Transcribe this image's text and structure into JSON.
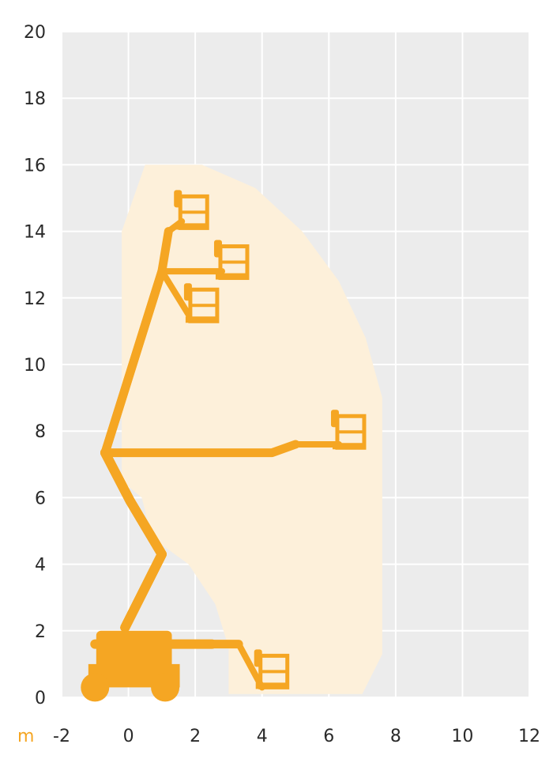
{
  "chart_data": {
    "type": "working-range-diagram",
    "unit_label": "m",
    "x_ticks": [
      "-2",
      "0",
      "2",
      "4",
      "6",
      "8",
      "10",
      "12"
    ],
    "y_ticks": [
      "0",
      "2",
      "4",
      "6",
      "8",
      "10",
      "12",
      "14",
      "16",
      "18",
      "20"
    ],
    "xlim": [
      -2,
      12
    ],
    "ylim": [
      0,
      20
    ],
    "grid": true,
    "colors": {
      "plot_background": "#ececec",
      "grid": "#ffffff",
      "envelope": "#fdf0da",
      "machine": "#f5a623",
      "unit_label": "#f5a623",
      "tick_text": "#2a2a2a"
    },
    "working_envelope": [
      [
        0.5,
        16.0
      ],
      [
        2.2,
        16.0
      ],
      [
        3.8,
        15.3
      ],
      [
        5.2,
        14.0
      ],
      [
        6.3,
        12.5
      ],
      [
        7.1,
        10.8
      ],
      [
        7.6,
        9.0
      ],
      [
        7.6,
        1.3
      ],
      [
        7.0,
        0.1
      ],
      [
        3.0,
        0.1
      ],
      [
        3.0,
        1.5
      ],
      [
        2.6,
        2.8
      ],
      [
        1.8,
        4.0
      ],
      [
        0.7,
        4.8
      ],
      [
        0.4,
        6.0
      ],
      [
        -0.2,
        6.5
      ],
      [
        -0.2,
        14.0
      ]
    ],
    "machine_positions": [
      {
        "mast": [
          [
            -0.7,
            7.35
          ],
          [
            0.05,
            5.9
          ],
          [
            1.0,
            4.3
          ],
          [
            -0.1,
            2.1
          ]
        ],
        "boom": [
          [
            1.0,
            12.8
          ],
          [
            1.2,
            14.0
          ]
        ],
        "jib": [
          [
            1.2,
            14.0
          ],
          [
            1.6,
            14.3
          ]
        ],
        "basket": [
          1.6,
          14.1
        ]
      },
      {
        "mast": [
          [
            -0.7,
            7.35
          ],
          [
            0.05,
            5.9
          ],
          [
            1.0,
            4.3
          ],
          [
            -0.1,
            2.1
          ]
        ],
        "boom": [
          [
            -0.7,
            7.35
          ],
          [
            1.0,
            12.8
          ]
        ],
        "jib": [
          [
            1.0,
            12.8
          ],
          [
            2.8,
            12.8
          ]
        ],
        "basket": [
          2.8,
          12.6
        ]
      },
      {
        "mast": [
          [
            -0.7,
            7.35
          ],
          [
            0.05,
            5.9
          ],
          [
            1.0,
            4.3
          ],
          [
            -0.1,
            2.1
          ]
        ],
        "boom": [
          [
            -0.7,
            7.35
          ],
          [
            1.0,
            12.8
          ]
        ],
        "jib": [
          [
            1.0,
            12.8
          ],
          [
            1.8,
            11.5
          ]
        ],
        "basket": [
          1.9,
          11.3
        ]
      },
      {
        "mast": [
          [
            -0.7,
            7.35
          ],
          [
            0.05,
            5.9
          ],
          [
            1.0,
            4.3
          ],
          [
            -0.1,
            2.1
          ]
        ],
        "boom": [
          [
            -0.7,
            7.35
          ],
          [
            4.3,
            7.35
          ],
          [
            5.0,
            7.6
          ]
        ],
        "jib": [
          [
            5.0,
            7.6
          ],
          [
            6.3,
            7.6
          ]
        ],
        "basket": [
          6.3,
          7.5
        ]
      },
      {
        "mast": [
          [
            -1.0,
            1.6
          ],
          [
            2.5,
            1.6
          ]
        ],
        "boom": [
          [
            2.5,
            1.6
          ],
          [
            3.3,
            1.6
          ]
        ],
        "jib": [
          [
            3.3,
            1.6
          ],
          [
            4.0,
            0.3
          ]
        ],
        "basket": [
          4.0,
          0.3
        ]
      }
    ],
    "chassis": {
      "x_from": -1.2,
      "x_to": 1.3,
      "y_top": 2.0,
      "wheels_x": [
        -1.0,
        1.1
      ],
      "wheel_y": 0.3
    }
  }
}
